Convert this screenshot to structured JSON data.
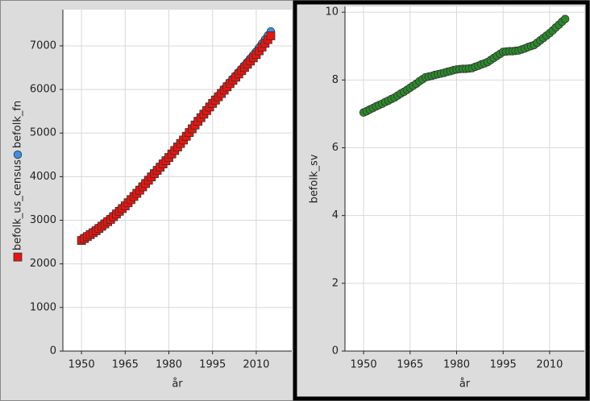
{
  "chart_data": [
    {
      "type": "scatter",
      "xlabel": "år",
      "x": [
        1950,
        1951,
        1952,
        1953,
        1954,
        1955,
        1956,
        1957,
        1958,
        1959,
        1960,
        1961,
        1962,
        1963,
        1964,
        1965,
        1966,
        1967,
        1968,
        1969,
        1970,
        1971,
        1972,
        1973,
        1974,
        1975,
        1976,
        1977,
        1978,
        1979,
        1980,
        1981,
        1982,
        1983,
        1984,
        1985,
        1986,
        1987,
        1988,
        1989,
        1990,
        1991,
        1992,
        1993,
        1994,
        1995,
        1996,
        1997,
        1998,
        1999,
        2000,
        2001,
        2002,
        2003,
        2004,
        2005,
        2006,
        2007,
        2008,
        2009,
        2010,
        2011,
        2012,
        2013,
        2014,
        2015
      ],
      "series": [
        {
          "name": "befolk_us_census",
          "color": "#e8150f",
          "marker": "square",
          "values": [
            2536,
            2581,
            2626,
            2670,
            2715,
            2760,
            2812,
            2864,
            2916,
            2968,
            3020,
            3082,
            3144,
            3206,
            3268,
            3330,
            3402,
            3474,
            3546,
            3618,
            3690,
            3766,
            3842,
            3918,
            3994,
            4070,
            4144,
            4218,
            4292,
            4366,
            4440,
            4520,
            4600,
            4680,
            4760,
            4840,
            4926,
            5012,
            5098,
            5184,
            5270,
            5352,
            5434,
            5516,
            5598,
            5680,
            5756,
            5832,
            5908,
            5984,
            6060,
            6134,
            6208,
            6282,
            6356,
            6430,
            6504,
            6578,
            6652,
            6726,
            6800,
            6886,
            6972,
            7058,
            7144,
            7230
          ]
        },
        {
          "name": "befolk_fn",
          "color": "#3d8fe0",
          "marker": "circle",
          "values": [
            2557,
            2602,
            2647,
            2692,
            2737,
            2782,
            2834,
            2886,
            2939,
            2991,
            3043,
            3104,
            3164,
            3225,
            3285,
            3346,
            3419,
            3492,
            3564,
            3637,
            3710,
            3786,
            3861,
            3937,
            4012,
            4088,
            4162,
            4236,
            4309,
            4383,
            4457,
            4537,
            4617,
            4696,
            4776,
            4856,
            4942,
            5028,
            5113,
            5199,
            5285,
            5368,
            5451,
            5534,
            5617,
            5700,
            5778,
            5856,
            5934,
            6012,
            6090,
            6167,
            6244,
            6320,
            6397,
            6474,
            6553,
            6632,
            6712,
            6791,
            6870,
            6962,
            7054,
            7146,
            7238,
            7330
          ]
        }
      ],
      "xlim": [
        1943.6,
        2022.2
      ],
      "xticks": [
        1950,
        1965,
        1980,
        1995,
        2010
      ],
      "ylim": [
        0,
        7830
      ],
      "yticks": [
        0,
        1000,
        2000,
        3000,
        4000,
        5000,
        6000,
        7000
      ],
      "grid": true
    },
    {
      "type": "scatter",
      "xlabel": "år",
      "x": [
        1950,
        1951,
        1952,
        1953,
        1954,
        1955,
        1956,
        1957,
        1958,
        1959,
        1960,
        1961,
        1962,
        1963,
        1964,
        1965,
        1966,
        1967,
        1968,
        1969,
        1970,
        1971,
        1972,
        1973,
        1974,
        1975,
        1976,
        1977,
        1978,
        1979,
        1980,
        1981,
        1982,
        1983,
        1984,
        1985,
        1986,
        1987,
        1988,
        1989,
        1990,
        1991,
        1992,
        1993,
        1994,
        1995,
        1996,
        1997,
        1998,
        1999,
        2000,
        2001,
        2002,
        2003,
        2004,
        2005,
        2006,
        2007,
        2008,
        2009,
        2010,
        2011,
        2012,
        2013,
        2014,
        2015
      ],
      "series": [
        {
          "name": "befolk_sv",
          "color": "#2a8a2a",
          "marker": "circle",
          "values": [
            7.04,
            7.08,
            7.13,
            7.17,
            7.22,
            7.26,
            7.3,
            7.35,
            7.39,
            7.44,
            7.48,
            7.54,
            7.6,
            7.65,
            7.71,
            7.77,
            7.83,
            7.89,
            7.96,
            8.02,
            8.08,
            8.1,
            8.12,
            8.15,
            8.17,
            8.19,
            8.21,
            8.24,
            8.26,
            8.29,
            8.31,
            8.32,
            8.33,
            8.33,
            8.34,
            8.35,
            8.39,
            8.42,
            8.46,
            8.49,
            8.53,
            8.59,
            8.65,
            8.71,
            8.77,
            8.83,
            8.84,
            8.85,
            8.85,
            8.86,
            8.87,
            8.9,
            8.93,
            8.97,
            9.0,
            9.03,
            9.1,
            9.17,
            9.24,
            9.31,
            9.38,
            9.46,
            9.55,
            9.63,
            9.72,
            9.8
          ]
        }
      ],
      "xlim": [
        1944.0,
        2021.2
      ],
      "xticks": [
        1950,
        1965,
        1980,
        1995,
        2010
      ],
      "ylim": [
        0,
        10.17
      ],
      "yticks": [
        0,
        2,
        4,
        6,
        8,
        10
      ],
      "grid": true
    }
  ]
}
